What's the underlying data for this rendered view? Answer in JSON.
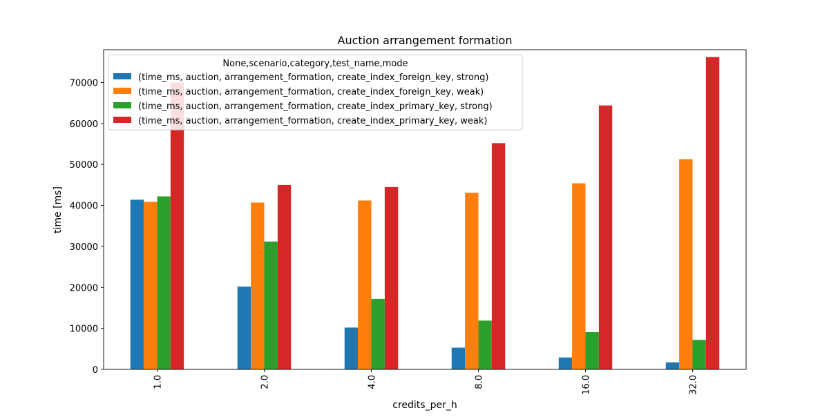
{
  "chart_data": {
    "type": "bar",
    "title": "Auction arrangement formation",
    "xlabel": "credits_per_h",
    "ylabel": "time [ms]",
    "categories": [
      "1.0",
      "2.0",
      "4.0",
      "8.0",
      "16.0",
      "32.0"
    ],
    "ylim": [
      0,
      78000
    ],
    "yticks": [
      0,
      10000,
      20000,
      30000,
      40000,
      50000,
      60000,
      70000
    ],
    "grid": false,
    "legend": {
      "title": "None,scenario,category,test_name,mode",
      "placement": "upper-left"
    },
    "series": [
      {
        "name": "(time_ms, auction, arrangement_formation, create_index_foreign_key, strong)",
        "color": "#1f77b4",
        "values": [
          41400,
          20200,
          10200,
          5300,
          2900,
          1700
        ]
      },
      {
        "name": "(time_ms, auction, arrangement_formation, create_index_foreign_key, weak)",
        "color": "#ff7f0e",
        "values": [
          40900,
          40700,
          41200,
          43100,
          45400,
          51300
        ]
      },
      {
        "name": "(time_ms, auction, arrangement_formation, create_index_primary_key, strong)",
        "color": "#2ca02c",
        "values": [
          42200,
          31200,
          17200,
          11900,
          9100,
          7200
        ]
      },
      {
        "name": "(time_ms, auction, arrangement_formation, create_index_primary_key, weak)",
        "color": "#d62728",
        "values": [
          70000,
          45000,
          44500,
          55200,
          64400,
          76200
        ]
      }
    ]
  }
}
